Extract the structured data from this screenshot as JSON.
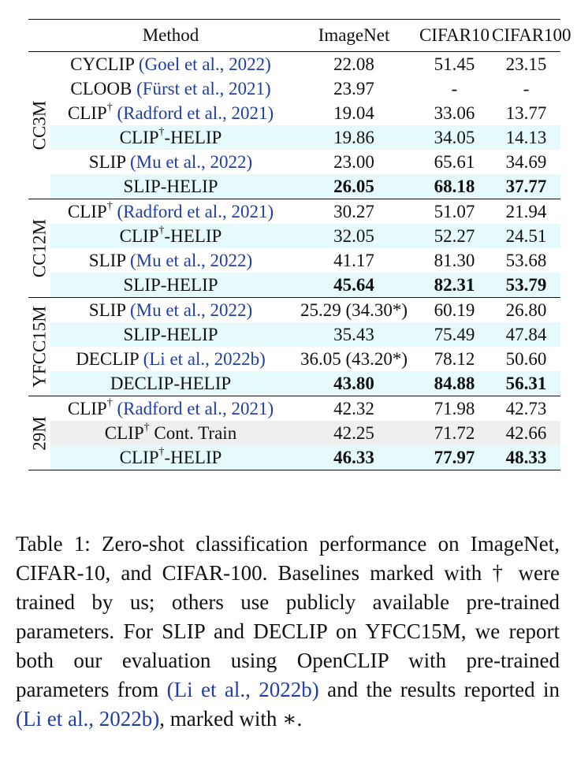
{
  "header": {
    "method": "Method",
    "imagenet": "ImageNet",
    "cifar10": "CIFAR10",
    "cifar100": "CIFAR100"
  },
  "groups": [
    {
      "label": "CC3M",
      "rows": [
        {
          "name": "CYCLIP",
          "sup": "",
          "suffix": "",
          "cite": "(Goel et al., 2022)",
          "imagenet": "22.08",
          "cifar10": "51.45",
          "cifar100": "23.15",
          "style": "plain",
          "bold": false
        },
        {
          "name": "CLOOB",
          "sup": "",
          "suffix": "",
          "cite": "(Fürst et al., 2021)",
          "imagenet": "23.97",
          "cifar10": "-",
          "cifar100": "-",
          "style": "plain",
          "bold": false
        },
        {
          "name": "CLIP",
          "sup": "†",
          "suffix": "",
          "cite": "(Radford et al., 2021)",
          "imagenet": "19.04",
          "cifar10": "33.06",
          "cifar100": "13.77",
          "style": "plain",
          "bold": false
        },
        {
          "name": "CLIP",
          "sup": "†",
          "suffix": "-HELIP",
          "cite": "",
          "imagenet": "19.86",
          "cifar10": "34.05",
          "cifar100": "14.13",
          "style": "highlight",
          "bold": false
        },
        {
          "name": "SLIP",
          "sup": "",
          "suffix": "",
          "cite": "(Mu et al., 2022)",
          "imagenet": "23.00",
          "cifar10": "65.61",
          "cifar100": "34.69",
          "style": "plain",
          "bold": false
        },
        {
          "name": "SLIP",
          "sup": "",
          "suffix": "-HELIP",
          "cite": "",
          "imagenet": "26.05",
          "cifar10": "68.18",
          "cifar100": "37.77",
          "style": "highlight",
          "bold": true
        }
      ]
    },
    {
      "label": "CC12M",
      "rows": [
        {
          "name": "CLIP",
          "sup": "†",
          "suffix": "",
          "cite": "(Radford et al., 2021)",
          "imagenet": "30.27",
          "cifar10": "51.07",
          "cifar100": "21.94",
          "style": "plain",
          "bold": false
        },
        {
          "name": "CLIP",
          "sup": "†",
          "suffix": "-HELIP",
          "cite": "",
          "imagenet": "32.05",
          "cifar10": "52.27",
          "cifar100": "24.51",
          "style": "highlight",
          "bold": false
        },
        {
          "name": "SLIP",
          "sup": "",
          "suffix": "",
          "cite": "(Mu et al., 2022)",
          "imagenet": "41.17",
          "cifar10": "81.30",
          "cifar100": "53.68",
          "style": "plain",
          "bold": false
        },
        {
          "name": "SLIP",
          "sup": "",
          "suffix": "-HELIP",
          "cite": "",
          "imagenet": "45.64",
          "cifar10": "82.31",
          "cifar100": "53.79",
          "style": "highlight",
          "bold": true
        }
      ]
    },
    {
      "label": "YFCC15M",
      "rows": [
        {
          "name": "SLIP",
          "sup": "",
          "suffix": "",
          "cite": "(Mu et al., 2022)",
          "imagenet": "25.29 (34.30*)",
          "cifar10": "60.19",
          "cifar100": "26.80",
          "style": "plain",
          "bold": false
        },
        {
          "name": "SLIP",
          "sup": "",
          "suffix": "-HELIP",
          "cite": "",
          "imagenet": "35.43",
          "cifar10": "75.49",
          "cifar100": "47.84",
          "style": "highlight",
          "bold": false
        },
        {
          "name": "DECLIP",
          "sup": "",
          "suffix": "",
          "cite": "(Li et al., 2022b)",
          "imagenet": "36.05 (43.20*)",
          "cifar10": "78.12",
          "cifar100": "50.60",
          "style": "plain",
          "bold": false
        },
        {
          "name": "DECLIP",
          "sup": "",
          "suffix": "-HELIP",
          "cite": "",
          "imagenet": "43.80",
          "cifar10": "84.88",
          "cifar100": "56.31",
          "style": "highlight",
          "bold": true
        }
      ]
    },
    {
      "label": "29M",
      "rows": [
        {
          "name": "CLIP",
          "sup": "†",
          "suffix": "",
          "cite": "(Radford et al., 2021)",
          "imagenet": "42.32",
          "cifar10": "71.98",
          "cifar100": "42.73",
          "style": "plain",
          "bold": false
        },
        {
          "name": "CLIP",
          "sup": "†",
          "suffix": " Cont. Train",
          "cite": "",
          "imagenet": "42.25",
          "cifar10": "71.72",
          "cifar100": "42.66",
          "style": "gray",
          "bold": false
        },
        {
          "name": "CLIP",
          "sup": "†",
          "suffix": "-HELIP",
          "cite": "",
          "imagenet": "46.33",
          "cifar10": "77.97",
          "cifar100": "48.33",
          "style": "highlight",
          "bold": true
        }
      ]
    }
  ],
  "caption": {
    "text_1": "Table 1: Zero-shot classification performance on ImageNet, CIFAR-10, and CIFAR-100. Baselines marked with † were trained by us; others use publicly available pre-trained parameters. For SLIP and DECLIP on YFCC15M, we report both our evaluation using OpenCLIP with pre-trained parameters from ",
    "cite_1": "(Li et al., 2022b)",
    "text_2": " and the results reported in ",
    "cite_2": "(Li et al., 2022b)",
    "text_3": ", marked with ∗."
  },
  "colors": {
    "highlight_row": "#e6fafb",
    "gray_row": "#efefef",
    "citation": "#1f3fa8"
  }
}
